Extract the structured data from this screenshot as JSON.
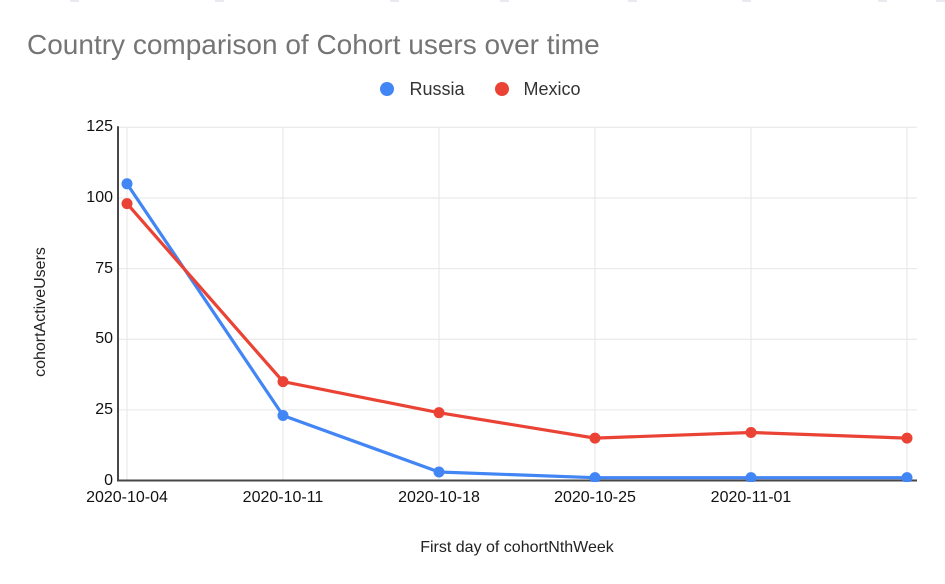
{
  "chart_data": {
    "type": "line",
    "title": "Country comparison of Cohort users over time",
    "xlabel": "First day of cohortNthWeek",
    "ylabel": "cohortActiveUsers",
    "x_tick_labels": [
      "2020-10-04",
      "2020-10-11",
      "2020-10-18",
      "2020-10-25",
      "2020-11-01",
      ""
    ],
    "series": [
      {
        "name": "Russia",
        "color": "#4285f4",
        "values": [
          105,
          23,
          3,
          1,
          1,
          1
        ]
      },
      {
        "name": "Mexico",
        "color": "#ea4335",
        "values": [
          98,
          35,
          24,
          15,
          17,
          15
        ]
      }
    ],
    "ylim": [
      0,
      125
    ],
    "yticks": [
      0,
      25,
      50,
      75,
      100,
      125
    ],
    "grid": true,
    "legend_position": "top-center",
    "marker": "circle"
  },
  "colors": {
    "background": "#ffffff",
    "title_text": "#757575",
    "tick_text": "#111111",
    "axis_line": "#474747",
    "gridline": "#e6e6e6"
  }
}
